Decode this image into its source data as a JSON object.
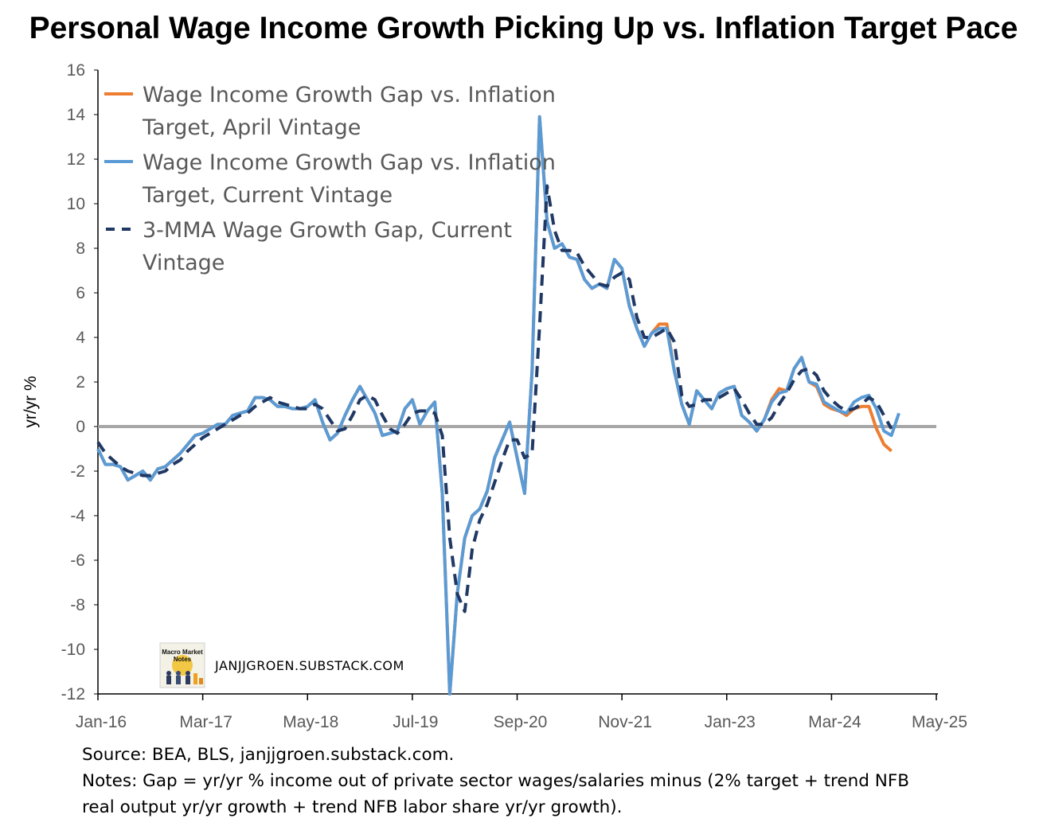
{
  "title": "Personal Wage Income Growth Picking Up vs. Inflation Target Pace",
  "chart_data": {
    "type": "line",
    "ylabel": "yr/yr %",
    "xlabel": "",
    "ylim": [
      -12,
      16
    ],
    "yticks": [
      16,
      14,
      12,
      10,
      8,
      6,
      4,
      2,
      0,
      -2,
      -4,
      -6,
      -8,
      -10,
      -12
    ],
    "xticks": [
      "Jan-16",
      "Mar-17",
      "May-18",
      "Jul-19",
      "Sep-20",
      "Nov-21",
      "Jan-23",
      "Mar-24",
      "May-25"
    ],
    "x_range": [
      "2016-01",
      "2025-05"
    ],
    "zero_reference_line": true,
    "grid": false,
    "legend_position": "top-left",
    "series": [
      {
        "name": "Wage Income Growth Gap vs. Inflation Target, April Vintage",
        "color": "#ed7d31",
        "style": "solid",
        "start": "2016-01",
        "values": [
          -1.0,
          -1.7,
          -1.7,
          -1.8,
          -2.4,
          -2.2,
          -2.0,
          -2.4,
          -1.9,
          -1.8,
          -1.5,
          -1.2,
          -0.8,
          -0.4,
          -0.3,
          -0.1,
          0.1,
          0.1,
          0.5,
          0.6,
          0.7,
          1.3,
          1.3,
          1.2,
          0.9,
          0.9,
          0.8,
          0.8,
          0.9,
          1.2,
          0.2,
          -0.6,
          -0.3,
          0.5,
          1.2,
          1.8,
          1.2,
          0.6,
          -0.4,
          -0.3,
          -0.2,
          0.8,
          1.2,
          0.1,
          0.7,
          1.1,
          -3.0,
          -12.0,
          -7.5,
          -5.0,
          -4.0,
          -3.7,
          -2.9,
          -1.4,
          -0.6,
          0.2,
          -1.4,
          -3.0,
          2.5,
          13.9,
          9.2,
          8.0,
          8.2,
          7.6,
          7.5,
          6.6,
          6.2,
          6.4,
          6.2,
          7.5,
          7.1,
          5.4,
          4.4,
          3.6,
          4.2,
          4.6,
          4.6,
          2.5,
          1.0,
          0.1,
          1.6,
          1.2,
          0.8,
          1.5,
          1.7,
          1.8,
          0.5,
          0.2,
          -0.2,
          0.3,
          1.2,
          1.7,
          1.6,
          2.6,
          3.1,
          2.0,
          1.8,
          1.0,
          0.8,
          0.7,
          0.5,
          0.8,
          0.9,
          0.9,
          -0.1,
          -0.8,
          -1.1
        ]
      },
      {
        "name": "Wage Income Growth Gap vs. Inflation Target, Current Vintage",
        "color": "#5b9bd5",
        "style": "solid",
        "start": "2016-01",
        "values": [
          -1.0,
          -1.7,
          -1.7,
          -1.8,
          -2.4,
          -2.2,
          -2.0,
          -2.4,
          -1.9,
          -1.8,
          -1.5,
          -1.2,
          -0.8,
          -0.4,
          -0.3,
          -0.1,
          0.1,
          0.1,
          0.5,
          0.6,
          0.7,
          1.3,
          1.3,
          1.2,
          0.9,
          0.9,
          0.8,
          0.8,
          0.9,
          1.2,
          0.2,
          -0.6,
          -0.3,
          0.5,
          1.2,
          1.8,
          1.2,
          0.6,
          -0.4,
          -0.3,
          -0.2,
          0.8,
          1.2,
          0.1,
          0.7,
          1.1,
          -3.0,
          -12.0,
          -7.5,
          -5.0,
          -4.0,
          -3.7,
          -2.9,
          -1.4,
          -0.6,
          0.2,
          -1.4,
          -3.0,
          2.5,
          13.9,
          9.2,
          8.0,
          8.2,
          7.6,
          7.5,
          6.6,
          6.2,
          6.4,
          6.2,
          7.5,
          7.1,
          5.4,
          4.4,
          3.6,
          4.2,
          4.4,
          4.4,
          2.5,
          1.0,
          0.1,
          1.6,
          1.2,
          0.8,
          1.5,
          1.7,
          1.8,
          0.5,
          0.2,
          -0.2,
          0.3,
          1.1,
          1.5,
          1.6,
          2.6,
          3.1,
          2.0,
          1.9,
          1.1,
          0.9,
          0.7,
          0.6,
          1.1,
          1.3,
          1.4,
          0.8,
          -0.2,
          -0.4,
          0.6
        ]
      },
      {
        "name": "3-MMA Wage Growth Gap, Current Vintage",
        "color": "#1f3864",
        "style": "dashed",
        "start": "2016-01",
        "values": [
          -0.7,
          -1.2,
          -1.5,
          -1.8,
          -2.0,
          -2.1,
          -2.2,
          -2.2,
          -2.1,
          -2.0,
          -1.7,
          -1.5,
          -1.1,
          -0.8,
          -0.5,
          -0.3,
          -0.1,
          0.1,
          0.3,
          0.5,
          0.6,
          0.9,
          1.1,
          1.3,
          1.1,
          1.0,
          0.9,
          0.8,
          0.8,
          1.0,
          0.8,
          0.3,
          -0.2,
          -0.1,
          0.5,
          1.2,
          1.4,
          1.2,
          0.5,
          -0.1,
          -0.3,
          0.1,
          0.6,
          0.7,
          0.7,
          0.6,
          -0.4,
          -5.0,
          -7.5,
          -8.3,
          -5.5,
          -4.2,
          -3.5,
          -2.5,
          -1.5,
          -0.6,
          -0.6,
          -1.4,
          -1.2,
          4.5,
          10.8,
          8.8,
          7.9,
          7.9,
          7.8,
          7.2,
          6.8,
          6.4,
          6.3,
          6.7,
          6.9,
          6.6,
          4.9,
          4.0,
          4.0,
          4.2,
          4.4,
          3.8,
          1.4,
          0.9,
          1.0,
          1.2,
          1.2,
          1.3,
          1.5,
          1.7,
          1.2,
          0.6,
          0.1,
          0.1,
          0.4,
          1.0,
          1.5,
          2.1,
          2.5,
          2.6,
          2.3,
          1.6,
          1.2,
          0.9,
          0.7,
          0.8,
          1.0,
          1.3,
          1.1,
          0.5,
          -0.1
        ]
      }
    ],
    "watermark": "JANJJGROEN.SUBSTACK.COM",
    "logo_text": [
      "Macro Market",
      "Notes"
    ]
  },
  "notes": {
    "source": "Source: BEA, BLS, janjjgroen.substack.com.",
    "line1": "Notes: Gap = yr/yr % income out of private sector wages/salaries minus (2% target + trend NFB",
    "line2": "real output yr/yr growth + trend NFB labor share yr/yr growth)."
  }
}
